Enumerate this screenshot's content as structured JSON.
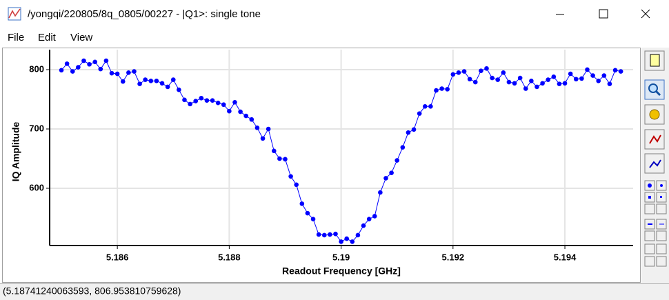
{
  "window": {
    "title": "/yongqi/220805/8q_0805/00227 - |Q1>: single tone"
  },
  "menu": [
    "File",
    "Edit",
    "View"
  ],
  "chart_data": {
    "type": "line",
    "xlabel": "Readout Frequency [GHz]",
    "ylabel": "IQ Amplitude",
    "x": [
      5.185,
      5.1851,
      5.1852,
      5.1853,
      5.1854,
      5.1855,
      5.1856,
      5.1857,
      5.1858,
      5.1859,
      5.186,
      5.1861,
      5.1862,
      5.1863,
      5.1864,
      5.1865,
      5.1866,
      5.1867,
      5.1868,
      5.1869,
      5.187,
      5.1871,
      5.1872,
      5.1873,
      5.1874,
      5.1875,
      5.1876,
      5.1877,
      5.1878,
      5.1879,
      5.188,
      5.1881,
      5.1882,
      5.1883,
      5.1884,
      5.1885,
      5.1886,
      5.1887,
      5.1888,
      5.1889,
      5.189,
      5.1891,
      5.1892,
      5.1893,
      5.1894,
      5.1895,
      5.1896,
      5.1897,
      5.1898,
      5.1899,
      5.19,
      5.1901,
      5.1902,
      5.1903,
      5.1904,
      5.1905,
      5.1906,
      5.1907,
      5.1908,
      5.1909,
      5.191,
      5.1911,
      5.1912,
      5.1913,
      5.1914,
      5.1915,
      5.1916,
      5.1917,
      5.1918,
      5.1919,
      5.192,
      5.1921,
      5.1922,
      5.1923,
      5.1924,
      5.1925,
      5.1926,
      5.1927,
      5.1928,
      5.1929,
      5.193,
      5.1931,
      5.1932,
      5.1933,
      5.1934,
      5.1935,
      5.1936,
      5.1937,
      5.1938,
      5.1939,
      5.194,
      5.1941,
      5.1942,
      5.1943,
      5.1944,
      5.1945,
      5.1946,
      5.1947,
      5.1948,
      5.1949,
      5.195
    ],
    "values": [
      799,
      810,
      797,
      804,
      815,
      809,
      813,
      801,
      815,
      794,
      793,
      780,
      795,
      797,
      776,
      783,
      781,
      781,
      777,
      771,
      783,
      766,
      749,
      742,
      747,
      752,
      748,
      748,
      744,
      741,
      730,
      745,
      729,
      722,
      716,
      702,
      684,
      700,
      663,
      650,
      649,
      620,
      606,
      574,
      558,
      548,
      522,
      521,
      522,
      523,
      510,
      515,
      510,
      521,
      537,
      548,
      553,
      593,
      617,
      626,
      647,
      669,
      694,
      699,
      726,
      738,
      738,
      765,
      768,
      767,
      792,
      795,
      797,
      784,
      779,
      798,
      802,
      786,
      783,
      795,
      779,
      777,
      786,
      768,
      781,
      771,
      777,
      783,
      788,
      776,
      777,
      793,
      784,
      785,
      800,
      790,
      781,
      790,
      776,
      799,
      797
    ],
    "color": "#0000ff",
    "xlim": [
      5.18479,
      5.19522
    ],
    "ylim": [
      503.5,
      833.7
    ],
    "xticks": [
      5.186,
      5.188,
      5.19,
      5.192,
      5.194
    ],
    "yticks": [
      600,
      700,
      800
    ],
    "grid": true
  },
  "status": "(5.18741240063593, 806.953810759628)"
}
